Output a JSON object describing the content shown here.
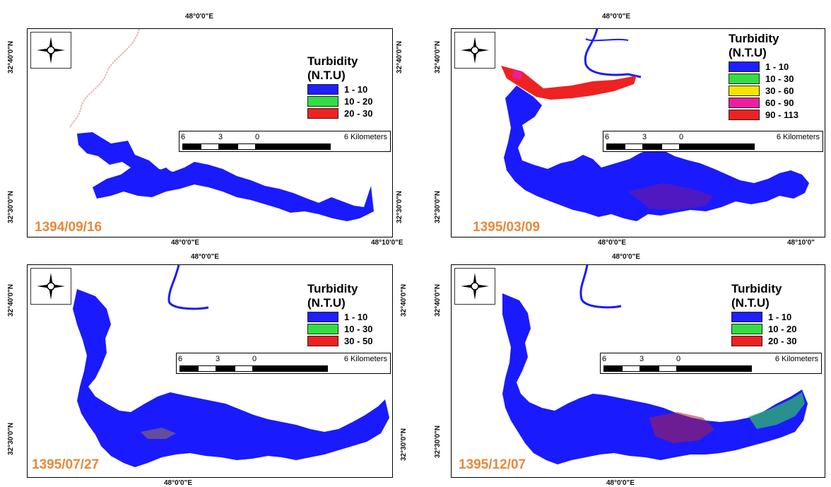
{
  "colors": {
    "water": "#1a1aff",
    "range_blue": "#1f1fff",
    "range_green": "#33dd44",
    "range_yellow": "#f2e600",
    "range_magenta": "#ee1c9f",
    "range_red": "#ee2222",
    "date_text": "#e8883a"
  },
  "scale_labels": {
    "t6": "6",
    "t3": "3",
    "t0": "0",
    "end": "6 Kilometers"
  },
  "panels": [
    {
      "date": "1394/09/16",
      "lon_top": "48°0'0\"E",
      "lon_bottom": "48°0'0\"E",
      "lon_bottom_right": "48°10'0\"E",
      "lat_left_top": "32°40'0\"N",
      "lat_left_bottom": "32°30'0\"N",
      "lat_right_top": "32°40'0\"N",
      "lat_right_bottom": "32°30'0\"N",
      "legend": {
        "title_line1": "Turbidity",
        "title_line2": "(N.T.U)",
        "items": [
          {
            "label": "1 - 10",
            "color": "#1f1fff"
          },
          {
            "label": "10 - 20",
            "color": "#33dd44"
          },
          {
            "label": "20 - 30",
            "color": "#ee2222"
          }
        ]
      }
    },
    {
      "date": "1395/03/09",
      "lon_top": "48°0'0\"E",
      "lon_bottom": "48°0'0\"E",
      "lon_bottom_right": "48°10'0\"",
      "lat_left_top": "32°40'0\"N",
      "lat_left_bottom": "32°30'0\"N",
      "legend": {
        "title_line1": "Turbidity",
        "title_line2": "(N.T.U)",
        "items": [
          {
            "label": "1 - 10",
            "color": "#1f1fff"
          },
          {
            "label": "10 - 30",
            "color": "#33dd44"
          },
          {
            "label": "30 - 60",
            "color": "#f2e600"
          },
          {
            "label": "60 - 90",
            "color": "#ee1c9f"
          },
          {
            "label": "90 - 113",
            "color": "#ee2222"
          }
        ]
      }
    },
    {
      "date": "1395/07/27",
      "lon_top": "48°0'0\"E",
      "lon_bottom": "48°0'0\"E",
      "lat_left_top": "32°40'0\"N",
      "lat_left_bottom": "32°30'0\"N",
      "lat_right_top": "32°40'0\"N",
      "lat_right_bottom": "32°30'0\"N",
      "legend": {
        "title_line1": "Turbidity",
        "title_line2": "(N.T.U)",
        "items": [
          {
            "label": "1 - 10",
            "color": "#1f1fff"
          },
          {
            "label": "10 - 30",
            "color": "#33dd44"
          },
          {
            "label": "30 - 50",
            "color": "#ee2222"
          }
        ]
      }
    },
    {
      "date": "1395/12/07",
      "lon_top": "48°0'0\"E",
      "lon_bottom": "48°0'0\"E",
      "lat_left_top": "32°40'0\"N",
      "lat_left_bottom": "32°30'0\"N",
      "legend": {
        "title_line1": "Turbidity",
        "title_line2": "(N.T.U)",
        "items": [
          {
            "label": "1 - 10",
            "color": "#1f1fff"
          },
          {
            "label": "10 - 20",
            "color": "#33dd44"
          },
          {
            "label": "20 - 30",
            "color": "#ee2222"
          }
        ]
      }
    }
  ]
}
